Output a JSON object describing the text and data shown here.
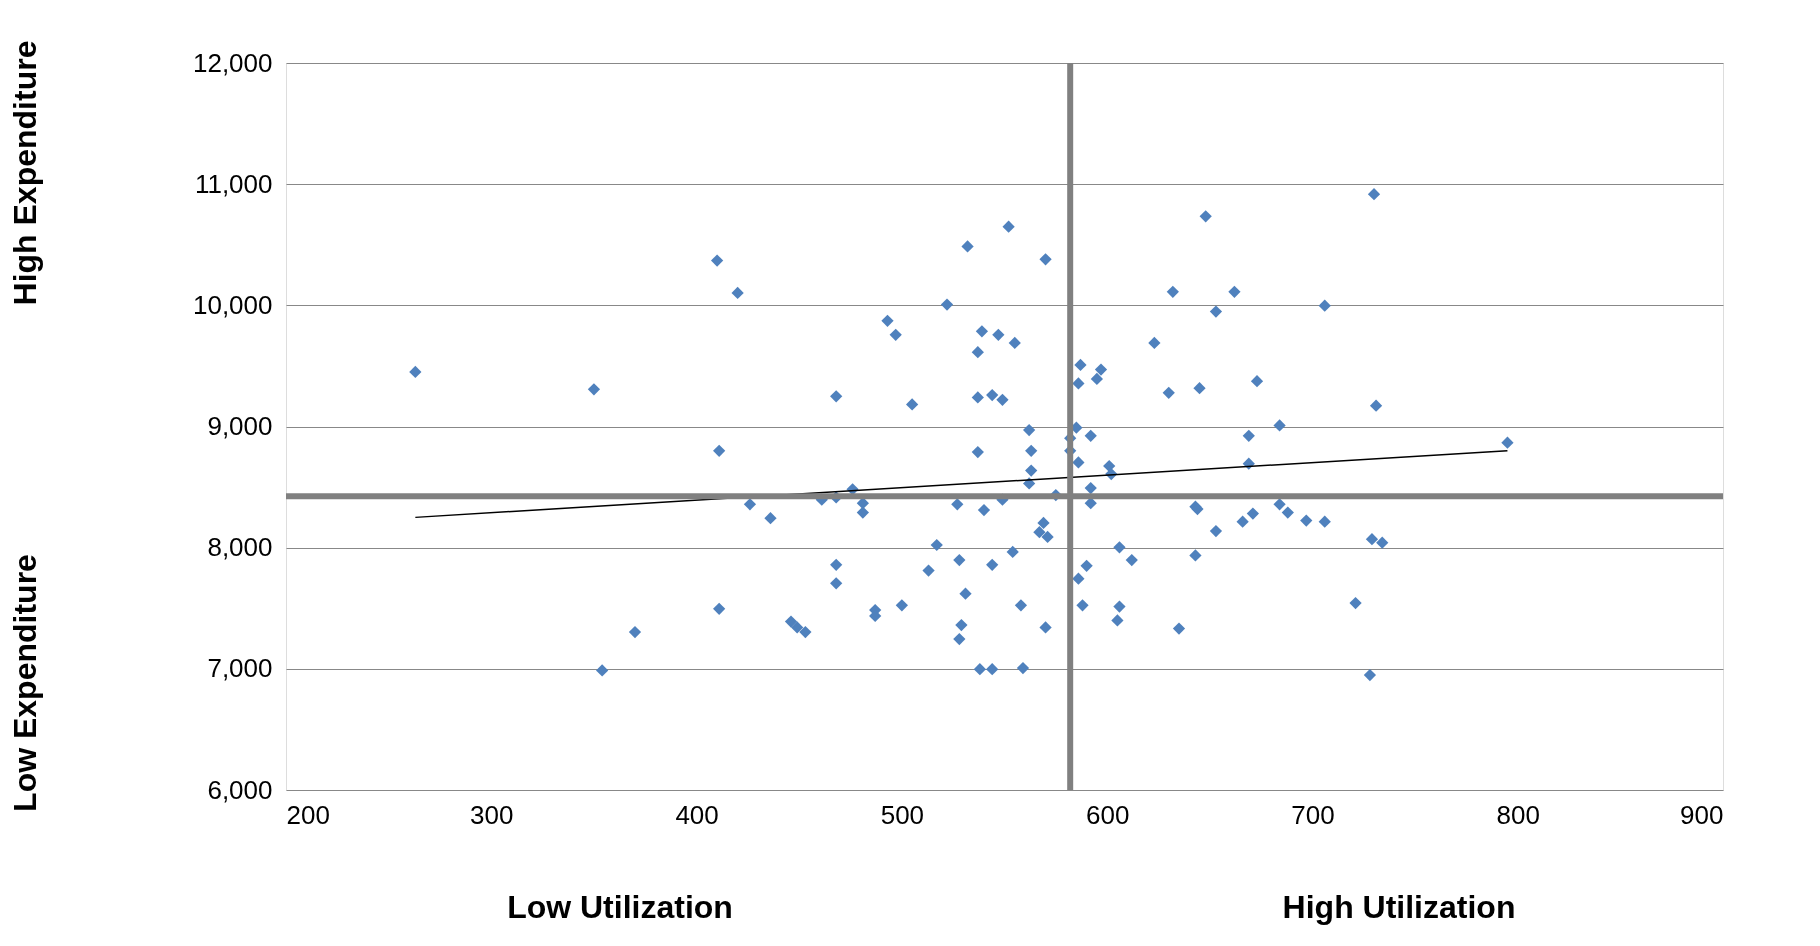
{
  "chart_data": {
    "type": "scatter",
    "xlim": [
      200,
      900
    ],
    "xticks": [
      200,
      300,
      400,
      500,
      600,
      700,
      800,
      900
    ],
    "ylim": [
      6000,
      12000
    ],
    "yticks": [
      {
        "value": 6000,
        "label": "6,000"
      },
      {
        "value": 7000,
        "label": "7,000"
      },
      {
        "value": 8000,
        "label": "8,000"
      },
      {
        "value": 9000,
        "label": "9,000"
      },
      {
        "value": 10000,
        "label": "10,000"
      },
      {
        "value": 11000,
        "label": "11,000"
      },
      {
        "value": 12000,
        "label": "12,000"
      }
    ],
    "grid": "y",
    "annotations": [
      "High Expenditure",
      "Low Expenditure",
      "Low Utilization",
      "High Utilization"
    ],
    "ref_lines": [
      {
        "axis": "x",
        "value": 582,
        "color": "#808080"
      },
      {
        "axis": "y",
        "value": 8424,
        "color": "#808080"
      }
    ],
    "series": [
      {
        "color": "#4f81bd",
        "marker": "diamond",
        "x": [
          263,
          350,
          354,
          370,
          410,
          420,
          411,
          411,
          426,
          436,
          446,
          449,
          453,
          461,
          468,
          468,
          476,
          481,
          481,
          468,
          468,
          487,
          487,
          500,
          493,
          497,
          505,
          513,
          517,
          522,
          527,
          528,
          532,
          531,
          529,
          528,
          537,
          537,
          537,
          539,
          547,
          544,
          549,
          540,
          549,
          552,
          555,
          554,
          544,
          538,
          544,
          558,
          559,
          570,
          562,
          563,
          563,
          562,
          569,
          567,
          571,
          575,
          570,
          582,
          585,
          582,
          586,
          586,
          587,
          592,
          597,
          595,
          592,
          592,
          590,
          586,
          588,
          601,
          602,
          606,
          612,
          606,
          605,
          623,
          632,
          630,
          635,
          648,
          645,
          643,
          644,
          643,
          653,
          653,
          662,
          673,
          669,
          669,
          671,
          666,
          684,
          684,
          688,
          697,
          706,
          706,
          721,
          730,
          731,
          729,
          734,
          728,
          795
        ],
        "values": [
          9450,
          9307,
          6987,
          7303,
          10370,
          10102,
          8799,
          7495,
          8358,
          8243,
          7390,
          7342,
          7303,
          8396,
          9249,
          8415,
          8482,
          8367,
          8290,
          7859,
          7706,
          7485,
          7437,
          7524,
          9872,
          9757,
          9182,
          7811,
          8022,
          10006,
          8358,
          7898,
          10486,
          7620,
          7361,
          7246,
          9240,
          8789,
          9613,
          9786,
          9757,
          9259,
          9220,
          8310,
          8396,
          10649,
          9690,
          7965,
          7859,
          6997,
          6997,
          7524,
          7006,
          10380,
          8971,
          8799,
          8636,
          8530,
          8204,
          8128,
          8089,
          8434,
          7342,
          8904,
          8990,
          8799,
          8703,
          9355,
          9508,
          8923,
          9470,
          9393,
          8492,
          8367,
          7850,
          7744,
          7524,
          8674,
          8607,
          8003,
          7898,
          7514,
          7399,
          9690,
          10112,
          9278,
          7332,
          10735,
          9316,
          8338,
          8319,
          7936,
          8137,
          9949,
          10112,
          9374,
          8923,
          8693,
          8281,
          8214,
          9009,
          8358,
          8290,
          8224,
          8214,
          9997,
          7543,
          10917,
          9172,
          8070,
          8041,
          6949,
          8866
        ]
      },
      {
        "type": "line",
        "marker": "none",
        "color": "#000000",
        "x": [
          263,
          795
        ],
        "values": [
          8250,
          8800
        ]
      }
    ]
  }
}
